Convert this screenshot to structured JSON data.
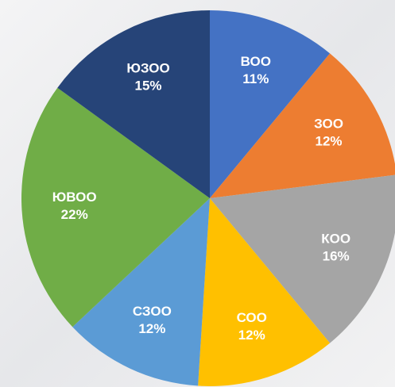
{
  "chart_data": {
    "type": "pie",
    "categories": [
      "ВОО",
      "ЗОО",
      "КОО",
      "СОО",
      "СЗОО",
      "ЮВОО",
      "ЮЗОО"
    ],
    "values": [
      11,
      12,
      16,
      12,
      12,
      22,
      15
    ],
    "value_labels": [
      "11%",
      "12%",
      "16%",
      "12%",
      "12%",
      "22%",
      "15%"
    ],
    "colors": [
      "#4472c4",
      "#ed7d31",
      "#a5a5a5",
      "#ffc000",
      "#5b9bd5",
      "#70ad47",
      "#264478"
    ]
  }
}
